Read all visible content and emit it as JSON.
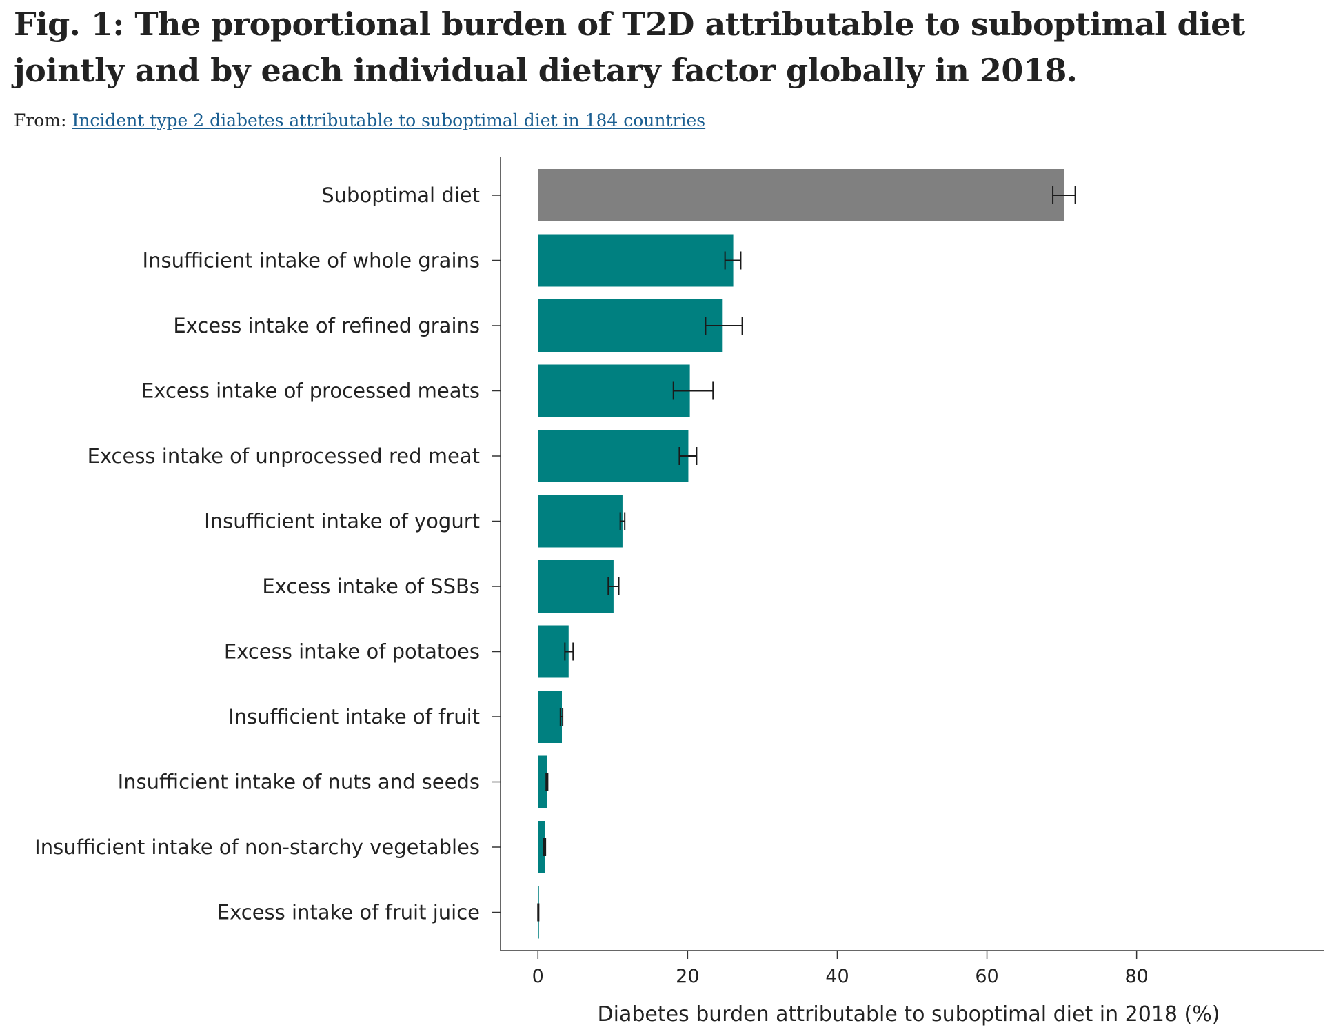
{
  "figure": {
    "title": "Fig. 1: The proportional burden of T2D attributable to suboptimal diet jointly and by each individual dietary factor globally in 2018.",
    "from_label": "From:",
    "from_link": "Incident type 2 diabetes attributable to suboptimal diet in 184 countries"
  },
  "chart_data": {
    "type": "bar",
    "orientation": "horizontal",
    "title": "",
    "xlabel": "Diabetes burden attributable to suboptimal diet in 2018 (%)",
    "ylabel": "",
    "xlim": [
      -5,
      105
    ],
    "xticks": [
      0,
      20,
      40,
      60,
      80
    ],
    "grid": false,
    "categories": [
      "Suboptimal diet",
      "Insufficient intake of whole grains",
      "Excess intake of refined grains",
      "Excess intake of processed meats",
      "Excess intake of unprocessed red meat",
      "Insufficient intake of yogurt",
      "Excess intake of SSBs",
      "Excess intake of potatoes",
      "Insufficient intake of fruit",
      "Insufficient intake of nuts and seeds",
      "Insufficient intake of non-starchy vegetables",
      "Excess intake of fruit juice"
    ],
    "values": [
      70.3,
      26.1,
      24.6,
      20.3,
      20.1,
      11.3,
      10.1,
      4.1,
      3.2,
      1.2,
      0.9,
      0.1
    ],
    "error_low": [
      68.8,
      25.0,
      22.4,
      18.1,
      18.9,
      11.0,
      9.4,
      3.6,
      3.0,
      1.1,
      0.8,
      0.0
    ],
    "error_high": [
      71.8,
      27.1,
      27.3,
      23.4,
      21.2,
      11.6,
      10.8,
      4.7,
      3.3,
      1.3,
      1.0,
      0.1
    ],
    "colors": {
      "joint": "#808080",
      "individual": "#008080",
      "error_bar": "#1a1a1a",
      "axis": "#333333"
    }
  }
}
